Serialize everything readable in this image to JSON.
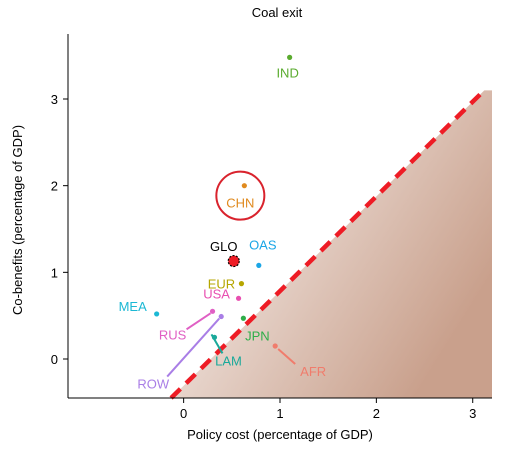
{
  "chart_data": {
    "type": "scatter",
    "title": "Coal exit",
    "xlabel": "Policy cost (percentage of GDP)",
    "ylabel": "Co-benefits (percentage of GDP)",
    "xlim": [
      -1.2,
      3.2
    ],
    "ylim": [
      -0.45,
      3.75
    ],
    "x_ticks": [
      0,
      1,
      2,
      3
    ],
    "y_ticks": [
      0,
      1,
      2,
      3
    ],
    "x_tick_labels": [
      "0",
      "1",
      "2",
      "3"
    ],
    "y_tick_labels": [
      "0",
      "1",
      "2",
      "3"
    ],
    "grid": false,
    "diagonal_line": {
      "color": "#ee1c25",
      "style": "dashed"
    },
    "points": [
      {
        "label": "IND",
        "x": 1.1,
        "y": 3.48,
        "color": "#5aab2e"
      },
      {
        "label": "CHN",
        "x": 0.63,
        "y": 2.0,
        "color": "#e08a1e",
        "highlighted": true
      },
      {
        "label": "GLO",
        "x": 0.52,
        "y": 1.13,
        "color": "#ee1c25"
      },
      {
        "label": "OAS",
        "x": 0.78,
        "y": 1.08,
        "color": "#1ba6e6"
      },
      {
        "label": "EUR",
        "x": 0.6,
        "y": 0.87,
        "color": "#b6a600"
      },
      {
        "label": "USA",
        "x": 0.57,
        "y": 0.7,
        "color": "#e84fb0"
      },
      {
        "label": "MEA",
        "x": -0.28,
        "y": 0.52,
        "color": "#1cb8d4"
      },
      {
        "label": "JPN",
        "x": 0.62,
        "y": 0.47,
        "color": "#2fae4a"
      },
      {
        "label": "RUS",
        "x": 0.3,
        "y": 0.55,
        "color": "#e05fc4"
      },
      {
        "label": "ROW",
        "x": 0.39,
        "y": 0.49,
        "color": "#a97ee6"
      },
      {
        "label": "LAM",
        "x": 0.32,
        "y": 0.25,
        "color": "#1aa99a"
      },
      {
        "label": "AFR",
        "x": 0.95,
        "y": 0.15,
        "color": "#f07c6c"
      }
    ]
  }
}
